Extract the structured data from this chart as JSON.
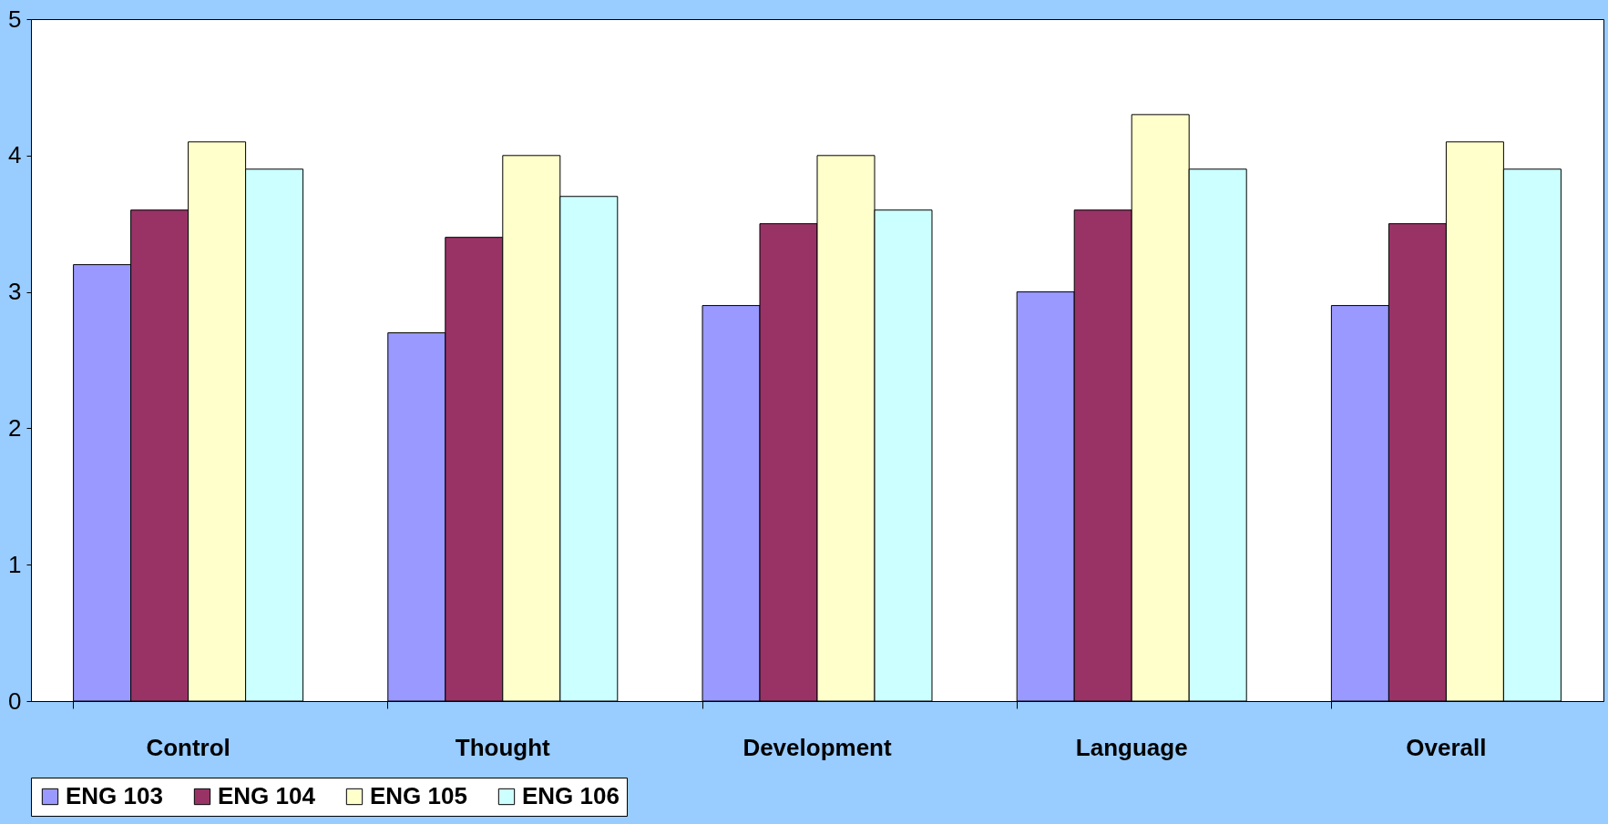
{
  "chart_data": {
    "type": "bar",
    "categories": [
      "Control",
      "Thought",
      "Development",
      "Language",
      "Overall"
    ],
    "series": [
      {
        "name": "ENG 103",
        "color": "#9999ff",
        "values": [
          3.2,
          2.7,
          2.9,
          3.0,
          2.9
        ]
      },
      {
        "name": "ENG 104",
        "color": "#993366",
        "values": [
          3.6,
          3.4,
          3.5,
          3.6,
          3.5
        ]
      },
      {
        "name": "ENG 105",
        "color": "#ffffcc",
        "values": [
          4.1,
          4.0,
          4.0,
          4.3,
          4.1
        ]
      },
      {
        "name": "ENG 106",
        "color": "#ccffff",
        "values": [
          3.9,
          3.7,
          3.6,
          3.9,
          3.9
        ]
      }
    ],
    "ylim": [
      0,
      5
    ],
    "yticks": [
      0,
      1,
      2,
      3,
      4,
      5
    ],
    "grid": false,
    "legend": "bottom"
  }
}
